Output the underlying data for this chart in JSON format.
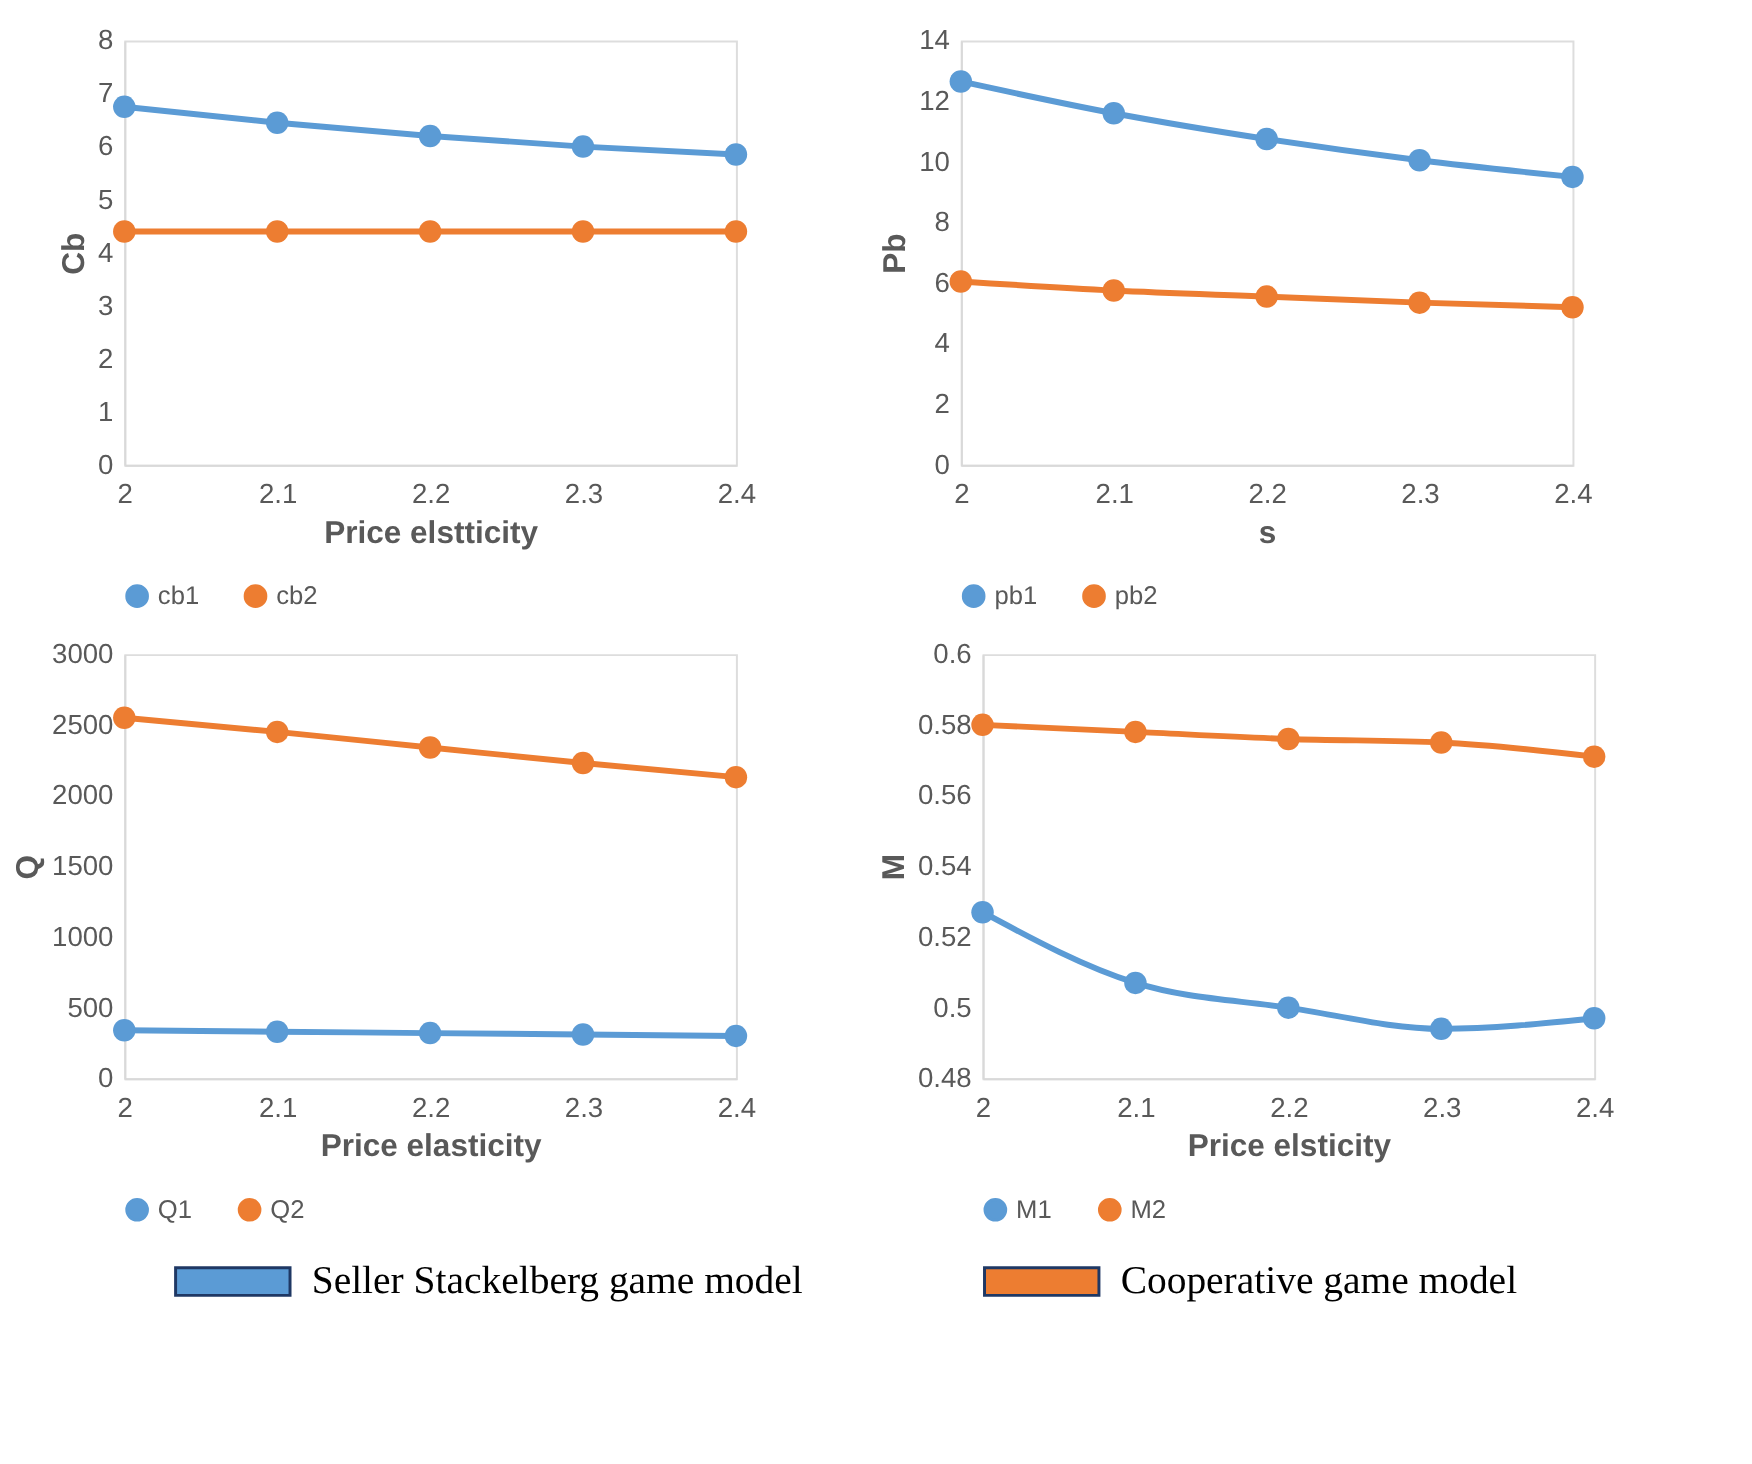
{
  "chart_data": [
    {
      "type": "line",
      "xlabel": "Price elstticity",
      "ylabel": "Cb",
      "x": [
        2,
        2.1,
        2.2,
        2.3,
        2.4
      ],
      "xlim": [
        2,
        2.4
      ],
      "xticks": [
        2,
        2.1,
        2.2,
        2.3,
        2.4
      ],
      "ylim": [
        0,
        8
      ],
      "yticks": [
        0,
        1,
        2,
        3,
        4,
        5,
        6,
        7,
        8
      ],
      "grid": false,
      "legend": "bottom",
      "marker": "circle",
      "line_style": "solid",
      "series": [
        {
          "name": "cb1",
          "color": "#5b9bd5",
          "values": [
            6.75,
            6.45,
            6.2,
            6.0,
            5.85
          ]
        },
        {
          "name": "cb2",
          "color": "#ed7d31",
          "values": [
            4.4,
            4.4,
            4.4,
            4.4,
            4.4
          ]
        }
      ]
    },
    {
      "type": "line",
      "xlabel": "s",
      "ylabel": "Pb",
      "x": [
        2,
        2.1,
        2.2,
        2.3,
        2.4
      ],
      "xlim": [
        2,
        2.4
      ],
      "xticks": [
        2,
        2.1,
        2.2,
        2.3,
        2.4
      ],
      "ylim": [
        0,
        14
      ],
      "yticks": [
        0,
        2,
        4,
        6,
        8,
        10,
        12,
        14
      ],
      "grid": false,
      "legend": "bottom",
      "marker": "circle",
      "line_style": "solid",
      "series": [
        {
          "name": "pb1",
          "color": "#5b9bd5",
          "values": [
            12.65,
            11.6,
            10.75,
            10.05,
            9.5
          ]
        },
        {
          "name": "pb2",
          "color": "#ed7d31",
          "values": [
            6.05,
            5.75,
            5.55,
            5.35,
            5.2
          ]
        }
      ]
    },
    {
      "type": "line",
      "xlabel": "Price elasticity",
      "ylabel": "Q",
      "x": [
        2,
        2.1,
        2.2,
        2.3,
        2.4
      ],
      "xlim": [
        2,
        2.4
      ],
      "xticks": [
        2,
        2.1,
        2.2,
        2.3,
        2.4
      ],
      "ylim": [
        0,
        3000
      ],
      "yticks": [
        0,
        500,
        1000,
        1500,
        2000,
        2500,
        3000
      ],
      "grid": false,
      "legend": "bottom",
      "marker": "circle",
      "line_style": "solid",
      "series": [
        {
          "name": "Q1",
          "color": "#5b9bd5",
          "values": [
            340,
            330,
            320,
            310,
            300
          ]
        },
        {
          "name": "Q2",
          "color": "#ed7d31",
          "values": [
            2550,
            2450,
            2340,
            2230,
            2130
          ]
        }
      ]
    },
    {
      "type": "line",
      "xlabel": "Price elsticity",
      "ylabel": "M",
      "x": [
        2,
        2.1,
        2.2,
        2.3,
        2.4
      ],
      "xlim": [
        2,
        2.4
      ],
      "xticks": [
        2,
        2.1,
        2.2,
        2.3,
        2.4
      ],
      "ylim": [
        0.48,
        0.6
      ],
      "yticks": [
        0.48,
        0.5,
        0.52,
        0.54,
        0.56,
        0.58,
        0.6
      ],
      "grid": false,
      "legend": "bottom",
      "marker": "circle",
      "line_style": "solid",
      "series": [
        {
          "name": "M1",
          "color": "#5b9bd5",
          "values": [
            0.527,
            0.507,
            0.5,
            0.494,
            0.497
          ]
        },
        {
          "name": "M2",
          "color": "#ed7d31",
          "values": [
            0.58,
            0.578,
            0.576,
            0.575,
            0.571
          ]
        }
      ]
    },
    {
      "type": "other",
      "legend": "bottom",
      "series": [
        {
          "name": "Seller Stackelberg game model",
          "color": "#5b9bd5"
        },
        {
          "name": "Cooperative game model",
          "color": "#ed7d31"
        }
      ]
    }
  ]
}
